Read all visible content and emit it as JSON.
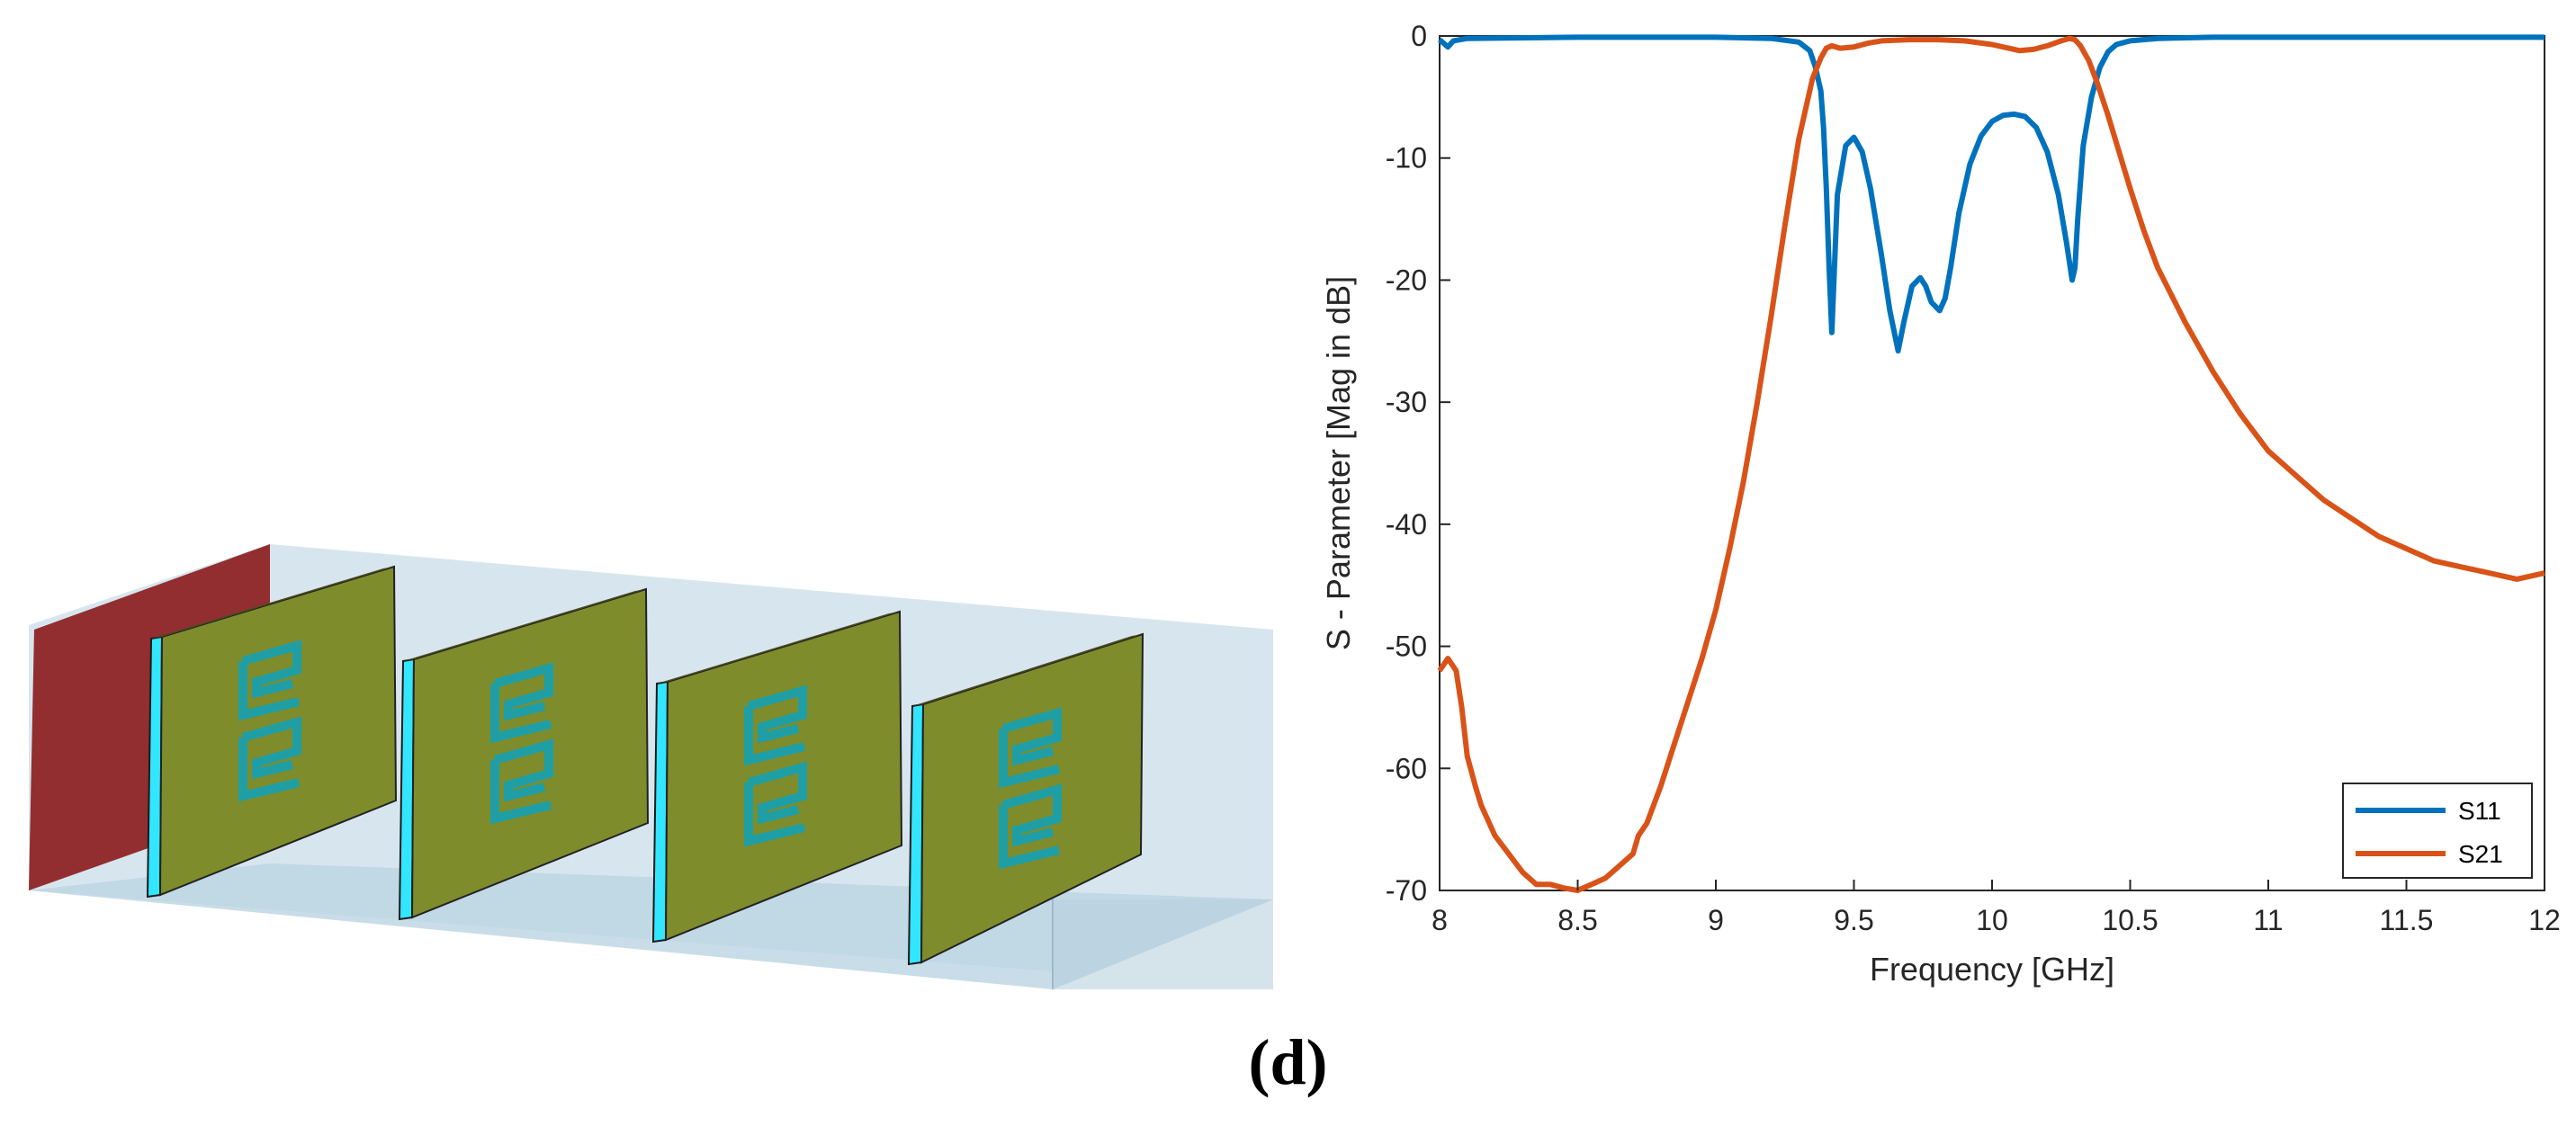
{
  "caption": "(d)",
  "model_3d": {
    "port_color": "#8b1a1a",
    "waveguide_color": "#b9d3e3",
    "plate_color": "#7e8c2c",
    "substrate_edge_color": "#32e6ff",
    "resonator_color": "#1f9fa5",
    "plate_count": 4
  },
  "chart_data": {
    "type": "line",
    "xlabel": "Frequency [GHz]",
    "ylabel": "S - Parameter [Mag in dB]",
    "xlim": [
      8,
      12
    ],
    "ylim": [
      -70,
      0
    ],
    "xticks": [
      "8",
      "8.5",
      "9",
      "9.5",
      "10",
      "10.5",
      "11",
      "11.5",
      "12"
    ],
    "yticks": [
      "0",
      "-10",
      "-20",
      "-30",
      "-40",
      "-50",
      "-60",
      "-70"
    ],
    "grid": false,
    "legend_position": "bottom-right",
    "series": [
      {
        "name": "S11",
        "color": "#0072BD",
        "x": [
          8.0,
          8.03,
          8.05,
          8.1,
          8.5,
          9.0,
          9.2,
          9.3,
          9.34,
          9.36,
          9.38,
          9.39,
          9.4,
          9.41,
          9.42,
          9.44,
          9.47,
          9.5,
          9.53,
          9.56,
          9.6,
          9.63,
          9.66,
          9.68,
          9.71,
          9.74,
          9.76,
          9.78,
          9.81,
          9.83,
          9.85,
          9.88,
          9.92,
          9.96,
          10.0,
          10.04,
          10.08,
          10.12,
          10.16,
          10.2,
          10.24,
          10.27,
          10.29,
          10.3,
          10.31,
          10.33,
          10.36,
          10.39,
          10.42,
          10.45,
          10.5,
          10.6,
          10.8,
          11.0,
          11.5,
          12.0
        ],
        "values": [
          -0.3,
          -0.9,
          -0.4,
          -0.2,
          -0.1,
          -0.1,
          -0.2,
          -0.5,
          -1.2,
          -2.5,
          -4.5,
          -7.5,
          -12.5,
          -19.0,
          -24.3,
          -13.0,
          -9.0,
          -8.3,
          -9.5,
          -12.5,
          -18.0,
          -22.5,
          -25.8,
          -23.5,
          -20.5,
          -19.8,
          -20.5,
          -21.8,
          -22.5,
          -21.5,
          -19.0,
          -14.5,
          -10.5,
          -8.2,
          -7.0,
          -6.5,
          -6.4,
          -6.6,
          -7.5,
          -9.5,
          -13.0,
          -17.0,
          -20.0,
          -19.0,
          -15.0,
          -9.0,
          -5.0,
          -2.6,
          -1.3,
          -0.7,
          -0.4,
          -0.2,
          -0.1,
          -0.1,
          -0.1,
          -0.1
        ]
      },
      {
        "name": "S21",
        "color": "#D95319",
        "x": [
          8.0,
          8.03,
          8.06,
          8.08,
          8.1,
          8.13,
          8.15,
          8.2,
          8.25,
          8.3,
          8.35,
          8.4,
          8.45,
          8.5,
          8.55,
          8.6,
          8.65,
          8.7,
          8.72,
          8.75,
          8.8,
          8.85,
          8.9,
          8.95,
          9.0,
          9.05,
          9.1,
          9.15,
          9.2,
          9.25,
          9.3,
          9.35,
          9.38,
          9.4,
          9.42,
          9.45,
          9.5,
          9.55,
          9.6,
          9.7,
          9.8,
          9.9,
          10.0,
          10.1,
          10.15,
          10.2,
          10.25,
          10.28,
          10.3,
          10.32,
          10.35,
          10.38,
          10.42,
          10.46,
          10.5,
          10.55,
          10.6,
          10.7,
          10.8,
          10.9,
          11.0,
          11.1,
          11.2,
          11.3,
          11.4,
          11.5,
          11.6,
          11.7,
          11.8,
          11.9,
          12.0
        ],
        "values": [
          -52,
          -51,
          -52,
          -55,
          -59,
          -61.5,
          -63,
          -65.5,
          -67,
          -68.5,
          -69.5,
          -69.5,
          -69.8,
          -70,
          -69.5,
          -69,
          -68,
          -67,
          -65.5,
          -64.5,
          -61.5,
          -58,
          -54.5,
          -51,
          -47,
          -42,
          -36.5,
          -30,
          -23,
          -15.5,
          -8.5,
          -3.5,
          -1.8,
          -1.0,
          -0.8,
          -1.0,
          -0.9,
          -0.6,
          -0.4,
          -0.3,
          -0.3,
          -0.4,
          -0.7,
          -1.2,
          -1.1,
          -0.8,
          -0.4,
          -0.2,
          -0.3,
          -0.8,
          -2.0,
          -3.8,
          -6.5,
          -9.5,
          -12.5,
          -16.0,
          -19.0,
          -23.5,
          -27.5,
          -31.0,
          -34.0,
          -36.0,
          -38.0,
          -39.5,
          -41.0,
          -42.0,
          -43.0,
          -43.5,
          -44.0,
          -44.5,
          -44.0
        ]
      }
    ]
  }
}
